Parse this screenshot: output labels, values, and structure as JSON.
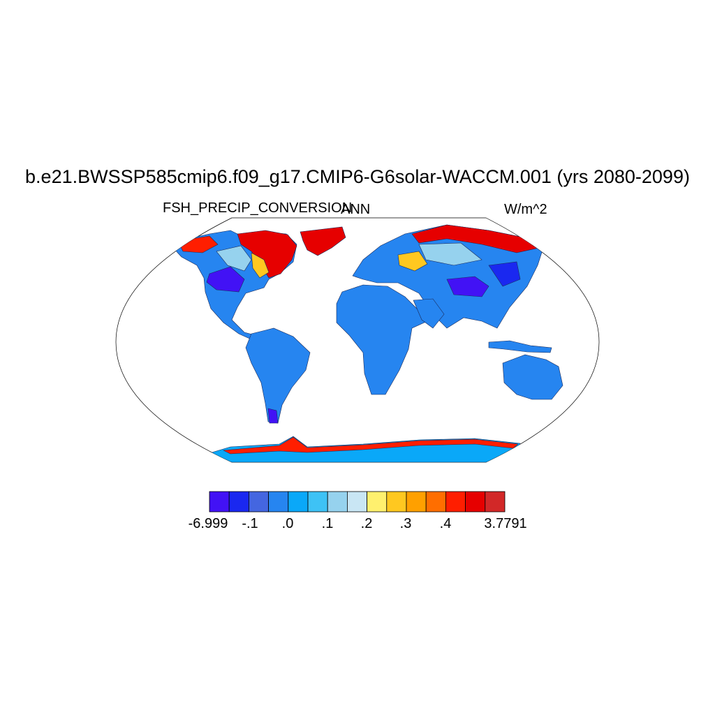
{
  "header": {
    "title": "b.e21.BWSSP585cmip6.f09_g17.CMIP6-G6solar-WACCM.001 (yrs 2080-2099)",
    "variable": "FSH_PRECIP_CONVERSION",
    "season": "ANN",
    "units": "W/m^2"
  },
  "colorbar": {
    "colors": [
      "#4212F5",
      "#1A28F0",
      "#4466E0",
      "#2685F0",
      "#0AA8F8",
      "#3EC2F5",
      "#96D2EE",
      "#C9E6F4",
      "#FFF06E",
      "#FFC820",
      "#FFA000",
      "#FF6E00",
      "#FF1E00",
      "#E60000",
      "#D22828"
    ],
    "tick_labels": [
      "-6.999",
      "-.1",
      ".0",
      ".1",
      ".2",
      ".3",
      ".4",
      "3.7791"
    ]
  }
}
